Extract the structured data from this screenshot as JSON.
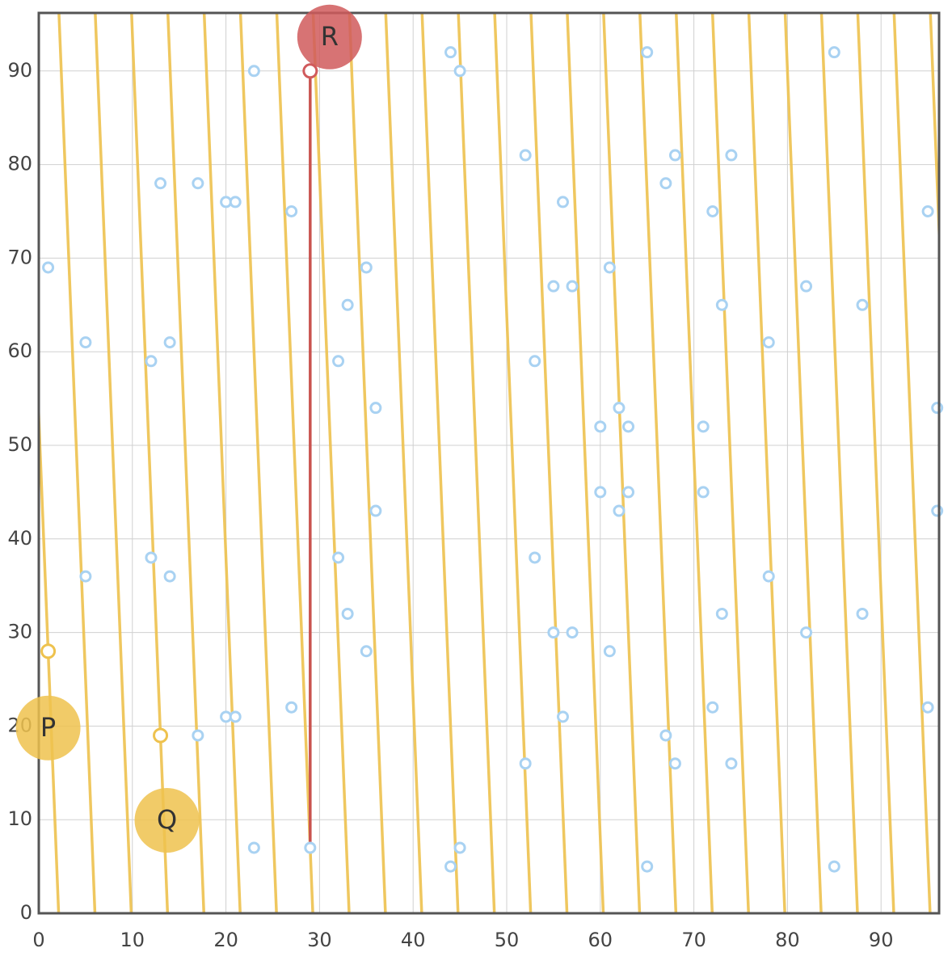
{
  "chart_data": {
    "type": "scatter",
    "xlim": [
      0,
      96.2
    ],
    "ylim": [
      0,
      96.2
    ],
    "xticks": [
      0,
      10,
      20,
      30,
      40,
      50,
      60,
      70,
      80,
      90
    ],
    "yticks": [
      0,
      10,
      20,
      30,
      40,
      50,
      60,
      70,
      80,
      90
    ],
    "grid": true,
    "points": {
      "color": "#a9d2f2",
      "x": [
        1,
        5,
        5,
        12,
        12,
        13,
        14,
        14,
        17,
        17,
        20,
        20,
        21,
        21,
        23,
        23,
        27,
        27,
        29,
        32,
        32,
        33,
        33,
        35,
        35,
        36,
        36,
        44,
        44,
        45,
        45,
        52,
        52,
        53,
        53,
        55,
        55,
        56,
        56,
        57,
        57,
        60,
        60,
        61,
        61,
        62,
        62,
        63,
        63,
        65,
        65,
        67,
        67,
        68,
        68,
        71,
        71,
        72,
        72,
        73,
        73,
        74,
        74,
        78,
        78,
        82,
        82,
        85,
        85,
        88,
        88,
        95,
        95,
        96,
        96
      ],
      "y": [
        69,
        61,
        36,
        59,
        38,
        78,
        61,
        36,
        78,
        19,
        76,
        21,
        76,
        21,
        90,
        7,
        75,
        22,
        7,
        59,
        38,
        65,
        32,
        69,
        28,
        54,
        43,
        92,
        5,
        90,
        7,
        81,
        16,
        59,
        38,
        67,
        30,
        76,
        21,
        67,
        30,
        52,
        45,
        69,
        28,
        54,
        43,
        52,
        45,
        92,
        5,
        78,
        19,
        81,
        16,
        52,
        45,
        75,
        22,
        65,
        32,
        81,
        16,
        61,
        36,
        67,
        30,
        92,
        5,
        65,
        32,
        75,
        22,
        54,
        43
      ]
    },
    "line": {
      "color": "#eec24e",
      "slope": -25,
      "intercept": 53,
      "period": 97
    },
    "reflection": {
      "color": "#c9534f",
      "x": 29,
      "y0": 7,
      "y1": 90
    },
    "special_points": [
      {
        "label": "P",
        "x": 1,
        "y": 28,
        "color": "#eec24e"
      },
      {
        "label": "Q",
        "x": 13,
        "y": 19,
        "color": "#eec24e"
      },
      {
        "label": "R",
        "x": 29,
        "y": 90,
        "color": "#d05a5c"
      }
    ]
  }
}
